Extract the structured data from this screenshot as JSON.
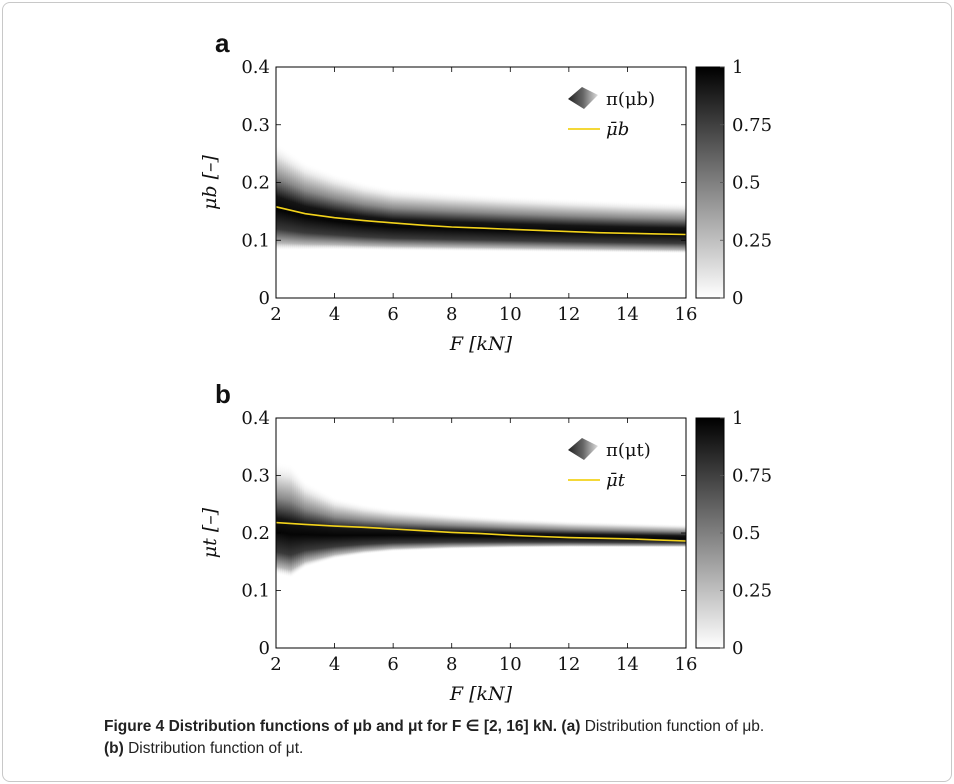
{
  "caption": {
    "label": "Figure 4",
    "title": "Distribution functions of μb and μt for F ∈ [2, 16] kN.",
    "part_a_label": "(a)",
    "part_a_text": "Distribution function of μb.",
    "part_b_label": "(b)",
    "part_b_text": "Distribution function of μt."
  },
  "colors": {
    "mean_line": "#f2d21b",
    "density_dark": "#000000",
    "density_light": "#ffffff"
  },
  "chart_data": [
    {
      "panel_label": "a",
      "type": "heatmap",
      "xlabel": "F [kN]",
      "ylabel": "μb [–]",
      "xlim": [
        2,
        16
      ],
      "ylim": [
        0,
        0.4
      ],
      "xticks": [
        "2",
        "4",
        "6",
        "8",
        "10",
        "12",
        "14",
        "16"
      ],
      "yticks": [
        "0",
        "0.1",
        "0.2",
        "0.3",
        "0.4"
      ],
      "colorbar": {
        "min": 0,
        "max": 1,
        "ticks": [
          "0",
          "0.25",
          "0.5",
          "0.75",
          "1"
        ]
      },
      "legend": {
        "position": "top-right",
        "entries": [
          "π(μb)",
          "μ̄b"
        ]
      },
      "mean": {
        "x": [
          2,
          3,
          4,
          5,
          6,
          7,
          8,
          9,
          10,
          11,
          12,
          13,
          14,
          15,
          16
        ],
        "y": [
          0.158,
          0.146,
          0.139,
          0.134,
          0.13,
          0.126,
          0.123,
          0.121,
          0.119,
          0.117,
          0.115,
          0.113,
          0.112,
          0.111,
          0.11
        ]
      },
      "lower_bound": {
        "x": [
          2,
          4,
          6,
          8,
          10,
          12,
          14,
          16
        ],
        "y": [
          0.082,
          0.083,
          0.082,
          0.081,
          0.08,
          0.079,
          0.078,
          0.077
        ]
      },
      "upper_bound": {
        "x": [
          2,
          3,
          4,
          5,
          6,
          8,
          10,
          12,
          14,
          16
        ],
        "y": [
          0.27,
          0.235,
          0.215,
          0.2,
          0.19,
          0.183,
          0.177,
          0.172,
          0.168,
          0.165
        ]
      }
    },
    {
      "panel_label": "b",
      "type": "heatmap",
      "xlabel": "F [kN]",
      "ylabel": "μt [–]",
      "xlim": [
        2,
        16
      ],
      "ylim": [
        0,
        0.4
      ],
      "xticks": [
        "2",
        "4",
        "6",
        "8",
        "10",
        "12",
        "14",
        "16"
      ],
      "yticks": [
        "0",
        "0.1",
        "0.2",
        "0.3",
        "0.4"
      ],
      "colorbar": {
        "min": 0,
        "max": 1,
        "ticks": [
          "0",
          "0.25",
          "0.5",
          "0.75",
          "1"
        ]
      },
      "legend": {
        "position": "top-right",
        "entries": [
          "π(μt)",
          "μ̄t"
        ]
      },
      "mean": {
        "x": [
          2,
          3,
          4,
          5,
          6,
          7,
          8,
          9,
          10,
          11,
          12,
          13,
          14,
          15,
          16
        ],
        "y": [
          0.218,
          0.215,
          0.212,
          0.21,
          0.207,
          0.204,
          0.201,
          0.199,
          0.196,
          0.194,
          0.192,
          0.191,
          0.19,
          0.188,
          0.186
        ]
      },
      "lower_bound": {
        "x": [
          2,
          2.5,
          3,
          4,
          5,
          6,
          8,
          10,
          12,
          14,
          16
        ],
        "y": [
          0.128,
          0.122,
          0.14,
          0.155,
          0.163,
          0.168,
          0.172,
          0.174,
          0.175,
          0.175,
          0.175
        ]
      },
      "upper_bound": {
        "x": [
          2,
          2.5,
          3,
          4,
          5,
          6,
          8,
          10,
          12,
          14,
          16
        ],
        "y": [
          0.325,
          0.32,
          0.29,
          0.262,
          0.25,
          0.242,
          0.233,
          0.226,
          0.221,
          0.218,
          0.215
        ]
      }
    }
  ]
}
